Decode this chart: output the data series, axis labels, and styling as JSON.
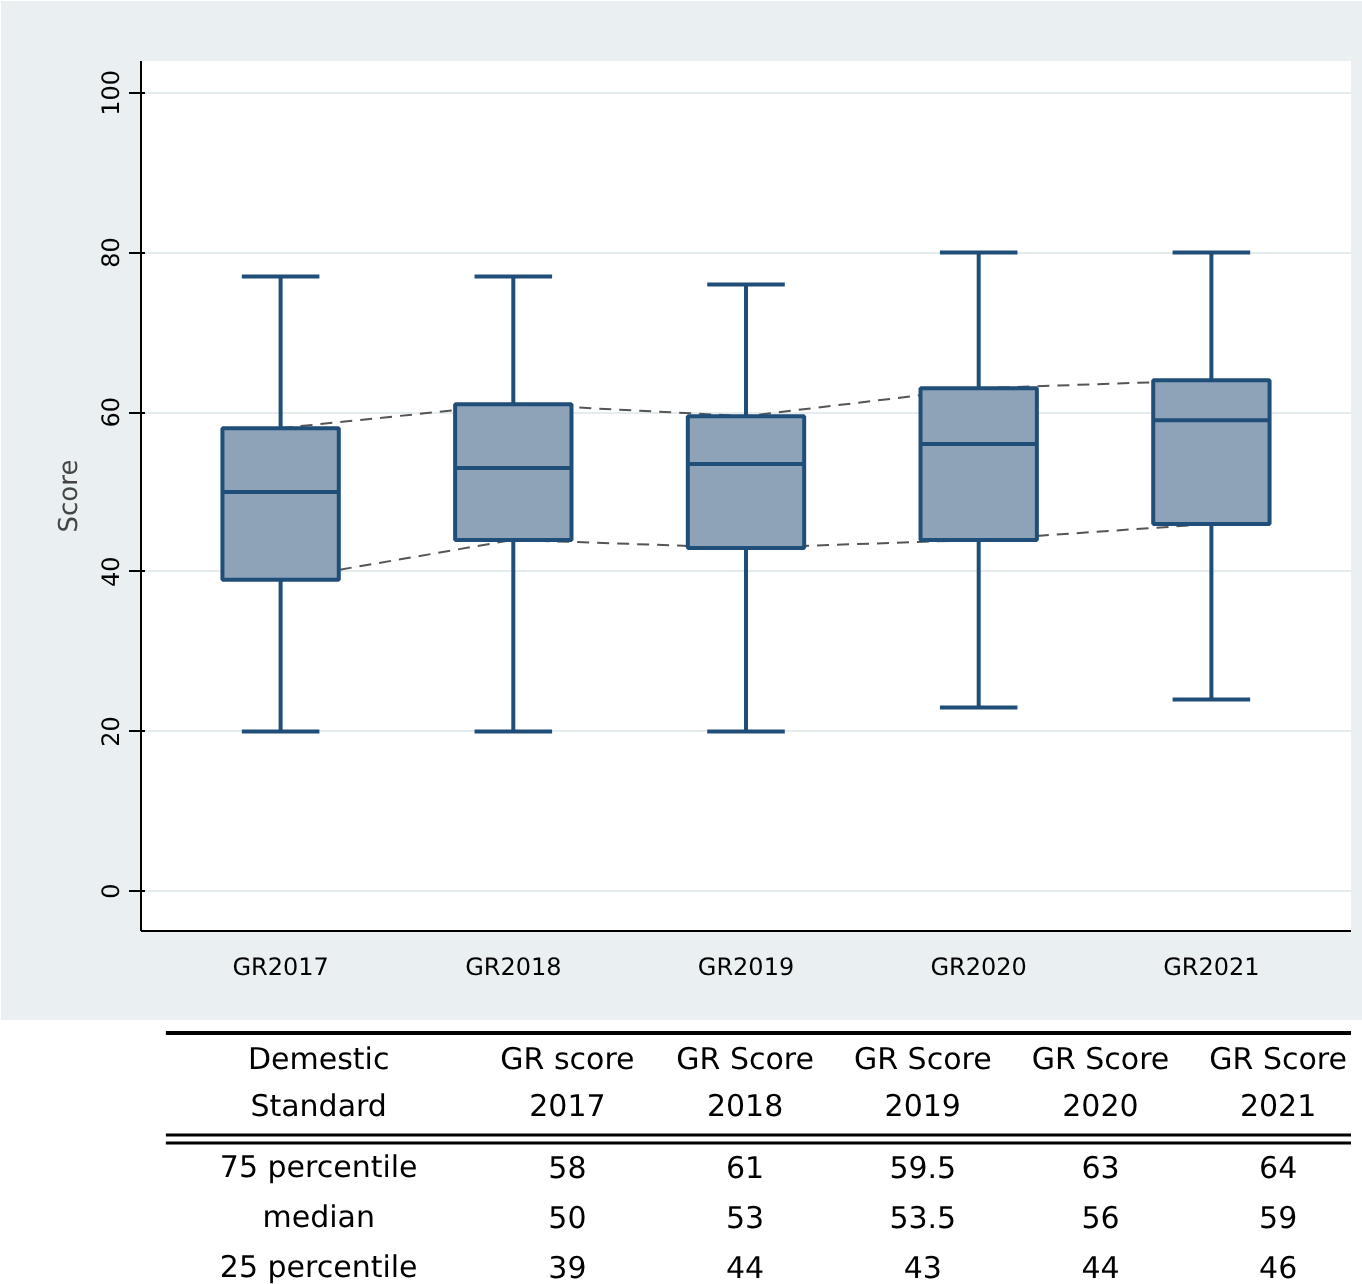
{
  "chart_data": {
    "type": "box",
    "ylabel": "Score",
    "categories": [
      "GR2017",
      "GR2018",
      "GR2019",
      "GR2020",
      "GR2021"
    ],
    "boxes": [
      {
        "low": 20,
        "q1": 39,
        "median": 50,
        "q3": 58,
        "high": 77
      },
      {
        "low": 20,
        "q1": 44,
        "median": 53,
        "q3": 61,
        "high": 77
      },
      {
        "low": 20,
        "q1": 43,
        "median": 53.5,
        "q3": 59.5,
        "high": 76
      },
      {
        "low": 23,
        "q1": 44,
        "median": 56,
        "q3": 63,
        "high": 80
      },
      {
        "low": 24,
        "q1": 46,
        "median": 59,
        "q3": 64,
        "high": 80
      }
    ],
    "color": "#8fa3b8",
    "series": [
      {
        "type": "line",
        "color": "#555555",
        "line_style": "dashed",
        "values": [
          58,
          61,
          59.5,
          63,
          64
        ]
      },
      {
        "type": "line",
        "color": "#555555",
        "line_style": "dashed",
        "values": [
          39,
          44,
          43,
          44,
          46
        ]
      }
    ],
    "ylim": [
      -5,
      104
    ],
    "yticks": [
      0,
      20,
      40,
      60,
      80,
      100
    ],
    "grid": "y",
    "annotations": [
      "Demestic Standard",
      "GR score 2017",
      "GR Score 2018",
      "GR Score 2019",
      "GR Score 2020",
      "GR Score 2021",
      "75 percentile",
      "58",
      "61",
      "59.5",
      "63",
      "64",
      "median",
      "50",
      "53",
      "53.5",
      "56",
      "59",
      "25 percentile",
      "39",
      "44",
      "43",
      "44",
      "46"
    ]
  }
}
